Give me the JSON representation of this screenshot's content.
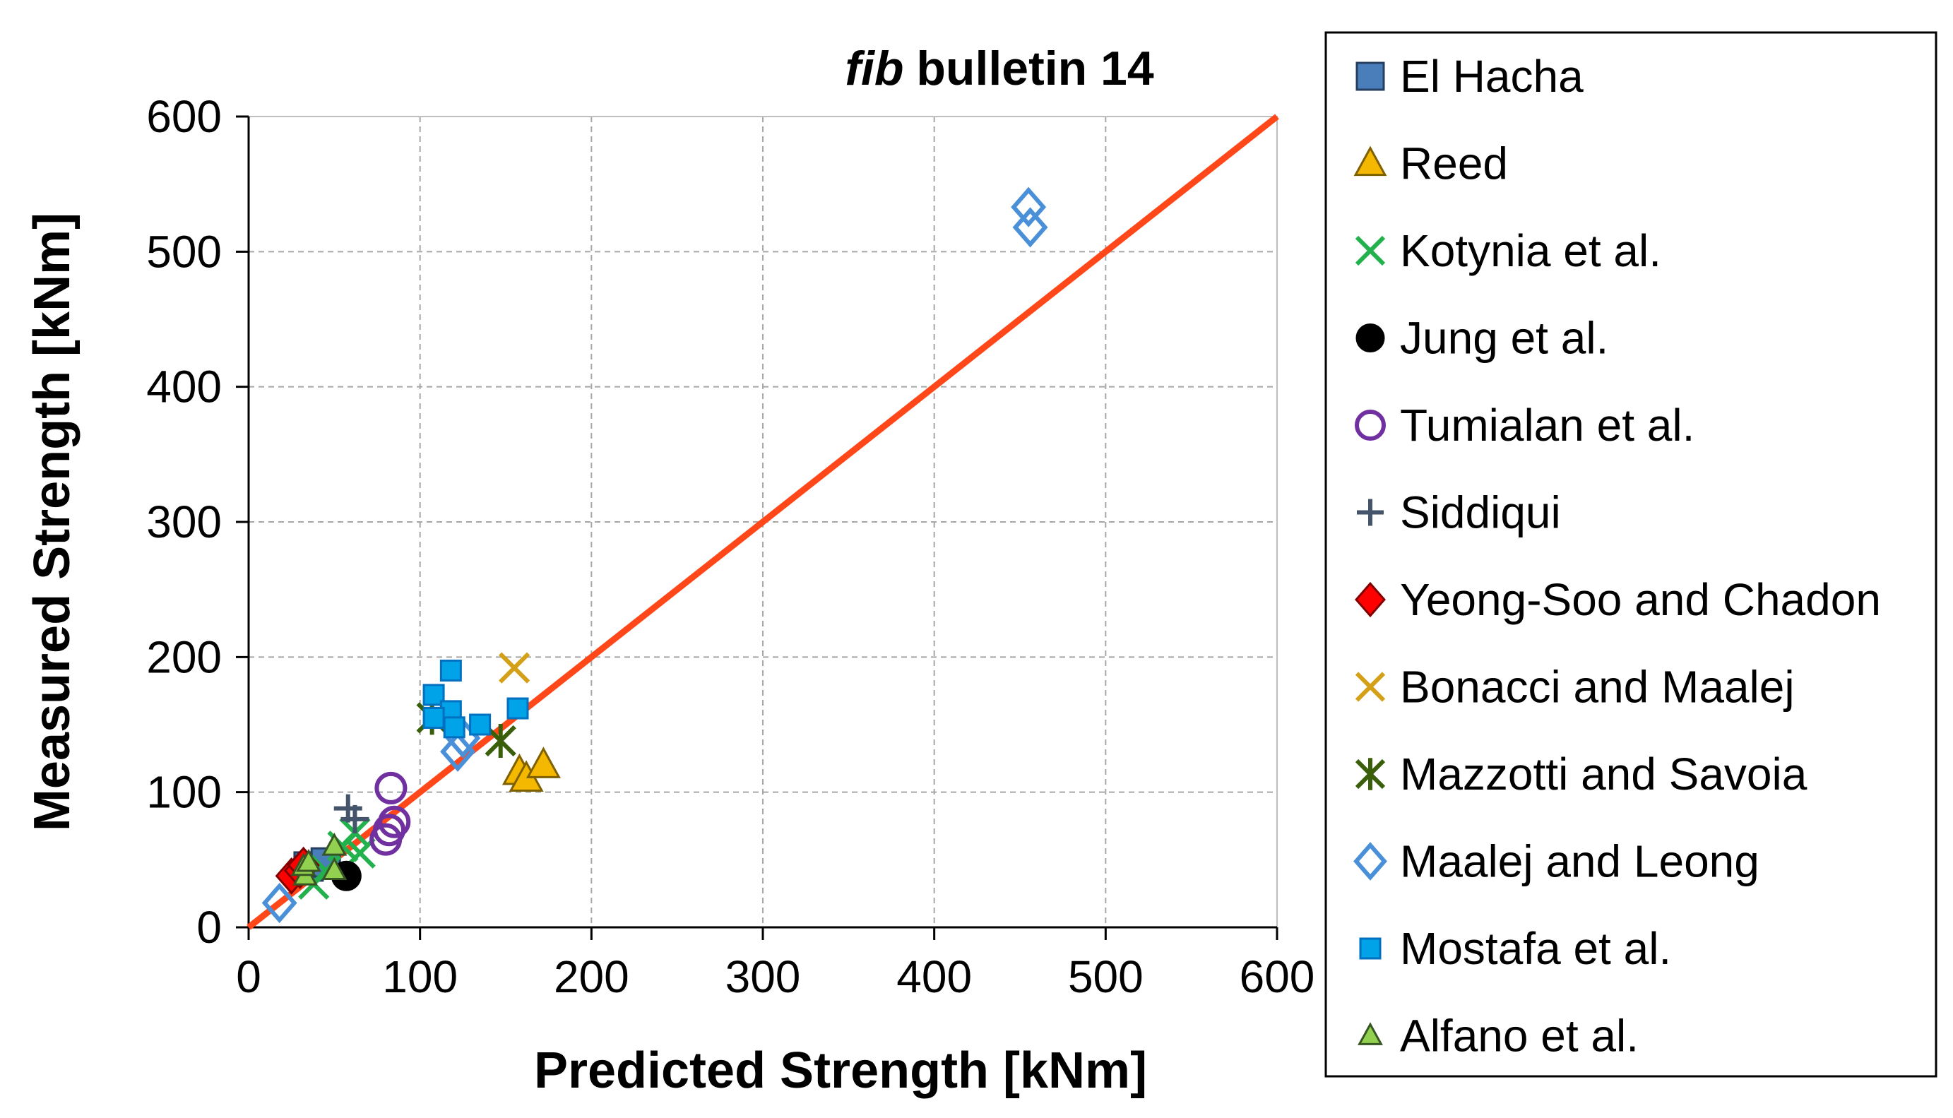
{
  "chart_data": {
    "type": "scatter",
    "title_italic": "fib",
    "title_rest": "bulletin 14",
    "xlabel": "Predicted Strength [kNm]",
    "ylabel": "Measured Strength [kNm]",
    "xlim": [
      0,
      600
    ],
    "ylim": [
      0,
      600
    ],
    "xticks": [
      0,
      100,
      200,
      300,
      400,
      500,
      600
    ],
    "yticks": [
      0,
      100,
      200,
      300,
      400,
      500,
      600
    ],
    "grid": true,
    "legend_position": "right",
    "reference_line": {
      "name": "equality line",
      "from": [
        0,
        0
      ],
      "to": [
        600,
        600
      ],
      "color": "#FF4719"
    },
    "series": [
      {
        "name": "El Hacha",
        "marker": "square",
        "color": "#4A7EBB",
        "edge": "#243F60",
        "filled": true,
        "points": [
          [
            35,
            45
          ],
          [
            45,
            48
          ]
        ]
      },
      {
        "name": "Reed",
        "marker": "triangle",
        "color": "#F5B800",
        "edge": "#7F6000",
        "filled": true,
        "points": [
          [
            158,
            115
          ],
          [
            162,
            110
          ],
          [
            172,
            120
          ]
        ]
      },
      {
        "name": "Kotynia et al.",
        "marker": "x",
        "color": "#22B14C",
        "edge": "#22B14C",
        "filled": false,
        "points": [
          [
            38,
            32
          ],
          [
            45,
            42
          ],
          [
            55,
            60
          ],
          [
            62,
            70
          ],
          [
            65,
            55
          ]
        ]
      },
      {
        "name": "Jung et al.",
        "marker": "circle",
        "color": "#000000",
        "edge": "#000000",
        "filled": true,
        "points": [
          [
            57,
            38
          ]
        ]
      },
      {
        "name": "Tumialan et al.",
        "marker": "circle",
        "color": "#7030A0",
        "edge": "#7030A0",
        "filled": false,
        "points": [
          [
            83,
            103
          ],
          [
            85,
            78
          ],
          [
            82,
            72
          ],
          [
            80,
            65
          ]
        ]
      },
      {
        "name": "Siddiqui",
        "marker": "plus",
        "color": "#44546A",
        "edge": "#44546A",
        "filled": false,
        "points": [
          [
            58,
            88
          ],
          [
            62,
            80
          ]
        ]
      },
      {
        "name": "Yeong-Soo and Chadon",
        "marker": "diamond",
        "color": "#FF0000",
        "edge": "#800000",
        "filled": true,
        "points": [
          [
            25,
            38
          ],
          [
            30,
            42
          ],
          [
            32,
            46
          ]
        ]
      },
      {
        "name": "Bonacci and Maalej",
        "marker": "x",
        "color": "#D4A017",
        "edge": "#D4A017",
        "filled": false,
        "points": [
          [
            155,
            192
          ]
        ]
      },
      {
        "name": "Mazzotti and Savoia",
        "marker": "asterisk",
        "color": "#3A5F0B",
        "edge": "#3A5F0B",
        "filled": false,
        "points": [
          [
            147,
            138
          ],
          [
            107,
            155
          ]
        ]
      },
      {
        "name": "Maalej and Leong",
        "marker": "diamond",
        "color": "#4A90D9",
        "edge": "#4A90D9",
        "filled": false,
        "points": [
          [
            455,
            533
          ],
          [
            456,
            518
          ],
          [
            122,
            130
          ],
          [
            125,
            140
          ],
          [
            18,
            18
          ]
        ]
      },
      {
        "name": "Mostafa et al.",
        "marker": "square",
        "color": "#00A2E8",
        "edge": "#0070C0",
        "filled": true,
        "small": true,
        "points": [
          [
            118,
            190
          ],
          [
            108,
            172
          ],
          [
            118,
            160
          ],
          [
            108,
            155
          ],
          [
            120,
            148
          ],
          [
            135,
            150
          ],
          [
            157,
            162
          ]
        ]
      },
      {
        "name": "Alfano et al.",
        "marker": "triangle",
        "color": "#92D050",
        "edge": "#375623",
        "filled": true,
        "small": true,
        "points": [
          [
            33,
            38
          ],
          [
            32,
            45
          ],
          [
            50,
            60
          ],
          [
            50,
            42
          ],
          [
            35,
            48
          ]
        ]
      }
    ]
  }
}
